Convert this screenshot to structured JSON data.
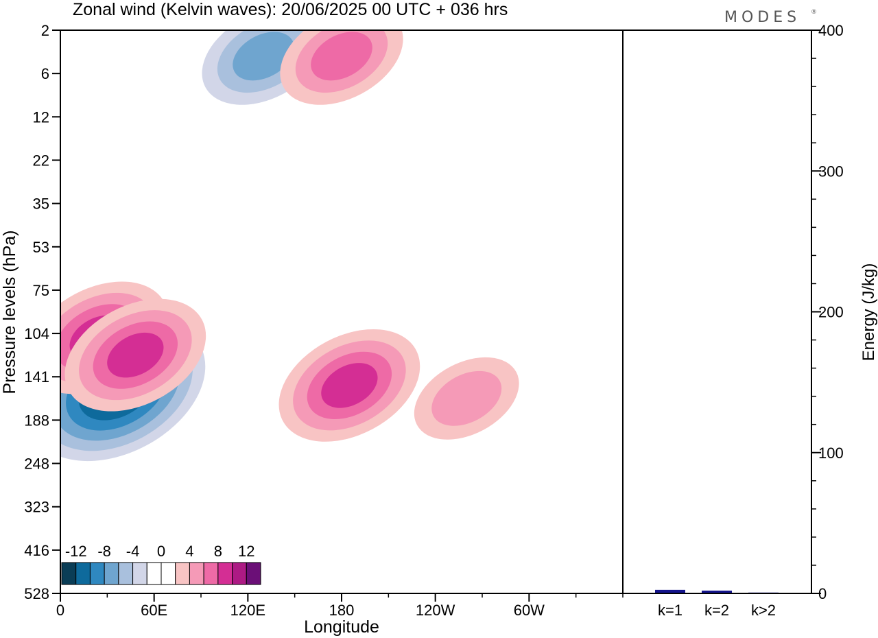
{
  "title": "Zonal wind (Kelvin waves):  20/06/2025  00 UTC  + 036 hrs",
  "brand": "MODES",
  "brand_mark": "®",
  "chart_data": [
    {
      "type": "heatmap",
      "xlabel": "Longitude",
      "ylabel": "Pressure levels (hPa)",
      "x_ticks": [
        "0",
        "60E",
        "120E",
        "180",
        "120W",
        "60W"
      ],
      "x_tick_values": [
        0,
        60,
        120,
        180,
        240,
        300
      ],
      "xlim": [
        0,
        360
      ],
      "y_ticks": [
        "2",
        "6",
        "12",
        "22",
        "35",
        "53",
        "75",
        "104",
        "141",
        "188",
        "248",
        "323",
        "416",
        "528"
      ],
      "y_scale": "level index (log-like pressure)",
      "colorbar": {
        "tick_labels": [
          "-12",
          "-8",
          "-4",
          "0",
          "4",
          "8",
          "12"
        ],
        "colors": [
          "#0a3d56",
          "#0e6a9c",
          "#2f88c0",
          "#6fa5cf",
          "#a9c0dd",
          "#d2d6e8",
          "#ffffff",
          "#ffffff",
          "#f8c4c4",
          "#f59ab7",
          "#ee6aa6",
          "#d42e94",
          "#ad1a84",
          "#6b0f77"
        ]
      },
      "features": [
        {
          "lon": 36,
          "level": 8.3,
          "value": -14
        },
        {
          "lon": 24,
          "level": 7.1,
          "value": 10
        },
        {
          "lon": 185,
          "level": 8.2,
          "value": 10
        },
        {
          "lon": 48,
          "level": 7.5,
          "value": 9
        },
        {
          "lon": 260,
          "level": 8.5,
          "value": 6
        },
        {
          "lon": 130,
          "level": 0.6,
          "value": -8
        },
        {
          "lon": 180,
          "level": 0.6,
          "value": 8
        }
      ]
    },
    {
      "type": "bar",
      "categories": [
        "k=1",
        "k=2",
        "k>2"
      ],
      "values": [
        2.5,
        2,
        0.6
      ],
      "ylabel": "Energy (J/kg)",
      "ylim": [
        0,
        400
      ],
      "y_ticks": [
        "0",
        "100",
        "200",
        "300",
        "400"
      ],
      "bar_color": "#14148c"
    }
  ]
}
